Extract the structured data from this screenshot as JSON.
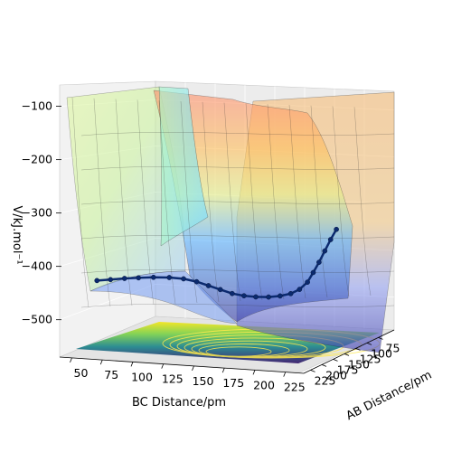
{
  "chart_data": {
    "type": "surface3d",
    "title": "",
    "xlabel": "BC Distance/pm",
    "ylabel": "AB Distance/pm",
    "zlabel": "V/kJ.mol⁻¹",
    "x_ticks": [
      "50",
      "75",
      "100",
      "125",
      "150",
      "175",
      "200",
      "225"
    ],
    "y_ticks": [
      "75",
      "100",
      "125",
      "150",
      "175",
      "200",
      "225"
    ],
    "z_ticks": [
      "−100",
      "−200",
      "−300",
      "−400",
      "−500"
    ],
    "z_tick_values": [
      -100,
      -200,
      -300,
      -400,
      -500
    ],
    "xlim": [
      40,
      240
    ],
    "ylim": [
      40,
      240
    ],
    "zlim": [
      -570,
      -60
    ],
    "colormap_surface": "jet",
    "colormap_contour": "viridis",
    "trajectory": {
      "color": "#0b2a6f",
      "points": [
        {
          "bc": 65,
          "ab": 225,
          "v": -436
        },
        {
          "bc": 75,
          "ab": 222,
          "v": -434
        },
        {
          "bc": 85,
          "ab": 218,
          "v": -432
        },
        {
          "bc": 95,
          "ab": 214,
          "v": -431
        },
        {
          "bc": 105,
          "ab": 208,
          "v": -431
        },
        {
          "bc": 115,
          "ab": 200,
          "v": -433
        },
        {
          "bc": 123,
          "ab": 190,
          "v": -438
        },
        {
          "bc": 130,
          "ab": 180,
          "v": -446
        },
        {
          "bc": 136,
          "ab": 170,
          "v": -456
        },
        {
          "bc": 142,
          "ab": 160,
          "v": -466
        },
        {
          "bc": 148,
          "ab": 150,
          "v": -476
        },
        {
          "bc": 154,
          "ab": 140,
          "v": -483
        },
        {
          "bc": 160,
          "ab": 130,
          "v": -488
        },
        {
          "bc": 166,
          "ab": 118,
          "v": -492
        },
        {
          "bc": 171,
          "ab": 106,
          "v": -494
        },
        {
          "bc": 176,
          "ab": 96,
          "v": -493
        },
        {
          "bc": 181,
          "ab": 90,
          "v": -487
        },
        {
          "bc": 186,
          "ab": 86,
          "v": -475
        },
        {
          "bc": 190,
          "ab": 84,
          "v": -458
        },
        {
          "bc": 194,
          "ab": 82,
          "v": -440
        },
        {
          "bc": 198,
          "ab": 80,
          "v": -420
        },
        {
          "bc": 202,
          "ab": 78,
          "v": -400
        },
        {
          "bc": 206,
          "ab": 76,
          "v": -382
        }
      ]
    }
  }
}
